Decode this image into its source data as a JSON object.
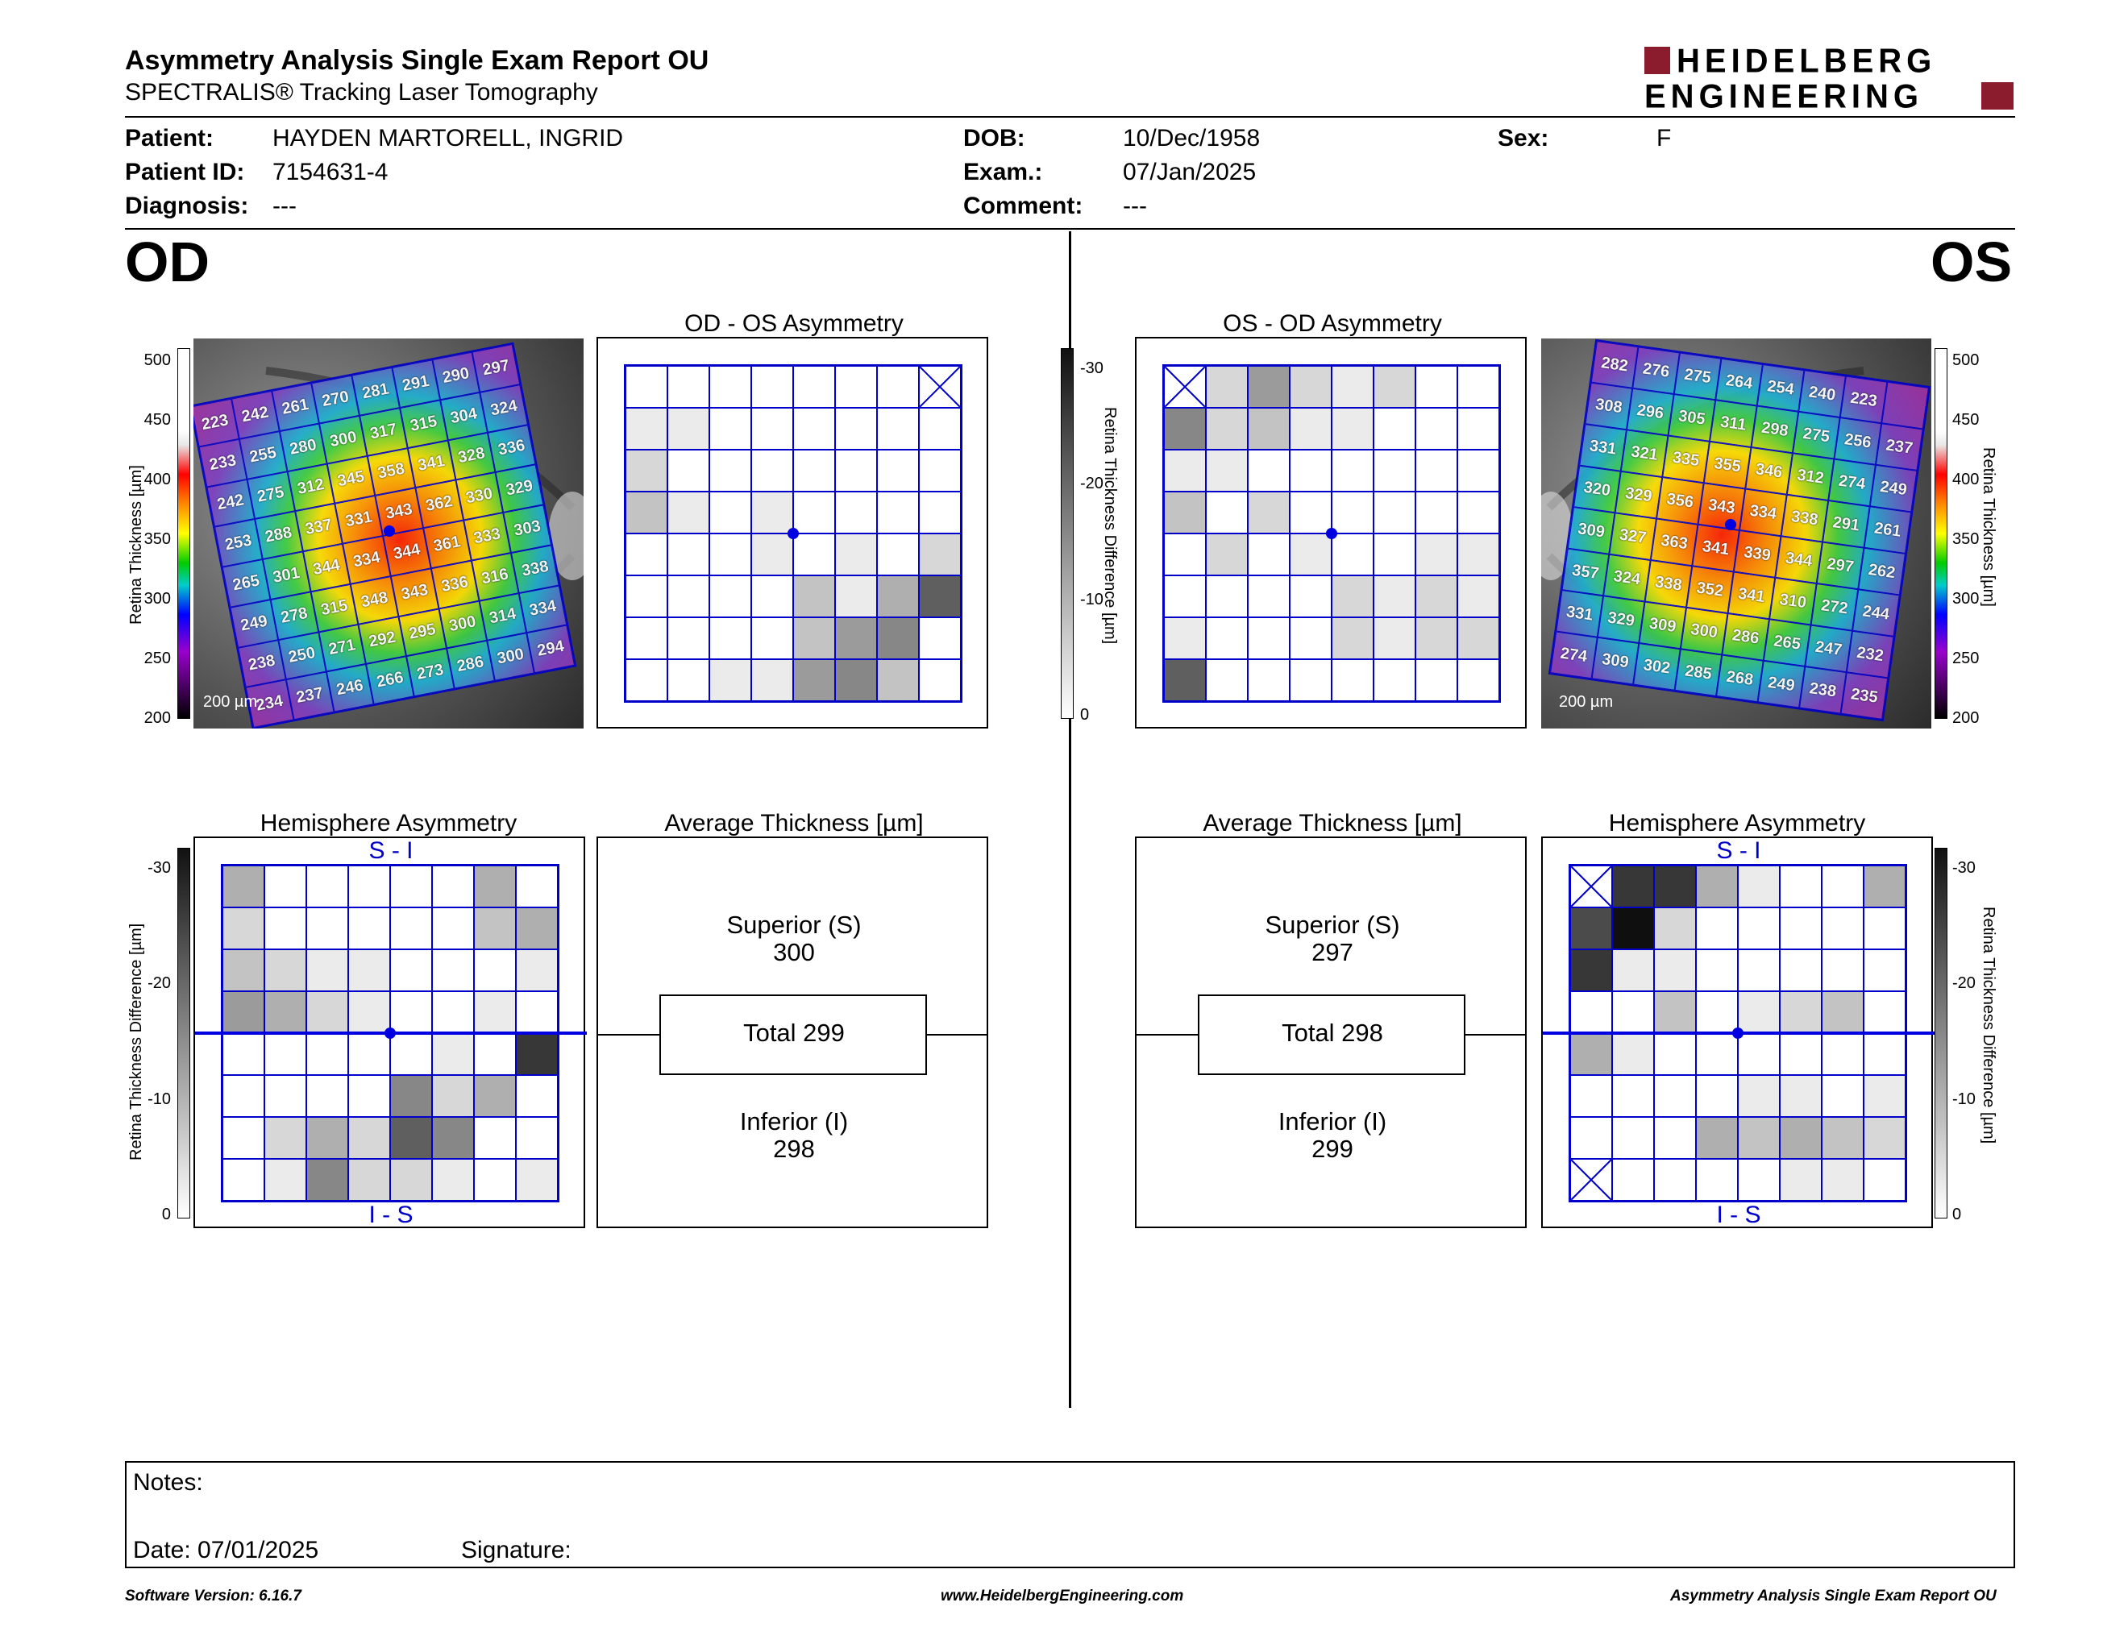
{
  "header": {
    "title": "Asymmetry Analysis Single Exam Report OU",
    "subtitle": "SPECTRALIS® Tracking Laser Tomography",
    "logo_line1": "HEIDELBERG",
    "logo_line2": "ENGINEERING"
  },
  "patient": {
    "patient_label": "Patient:",
    "patient_value": "HAYDEN MARTORELL, INGRID",
    "id_label": "Patient ID:",
    "id_value": "7154631-4",
    "diagnosis_label": "Diagnosis:",
    "diagnosis_value": "---",
    "dob_label": "DOB:",
    "dob_value": "10/Dec/1958",
    "exam_label": "Exam.:",
    "exam_value": "07/Jan/2025",
    "comment_label": "Comment:",
    "comment_value": "---",
    "sex_label": "Sex:",
    "sex_value": "F"
  },
  "od": {
    "eye": "OD",
    "asym_title": "OD - OS Asymmetry",
    "hemi_title": "Hemisphere Asymmetry",
    "hemi_top": "S - I",
    "hemi_bottom": "I - S",
    "avg_title": "Average Thickness [µm]",
    "superior_label": "Superior (S)",
    "superior_value": "300",
    "total": "Total 299",
    "inferior_label": "Inferior (I)",
    "inferior_value": "298",
    "scale": "200 µm",
    "thickness": [
      [
        "223",
        "242",
        "261",
        "270",
        "281",
        "291",
        "290",
        "297"
      ],
      [
        "233",
        "255",
        "280",
        "300",
        "317",
        "315",
        "304",
        "324"
      ],
      [
        "242",
        "275",
        "312",
        "345",
        "358",
        "341",
        "328",
        "336"
      ],
      [
        "253",
        "288",
        "337",
        "331",
        "343",
        "362",
        "330",
        "329"
      ],
      [
        "265",
        "301",
        "344",
        "334",
        "344",
        "361",
        "333",
        "303"
      ],
      [
        "249",
        "278",
        "315",
        "348",
        "343",
        "336",
        "316",
        "338"
      ],
      [
        "238",
        "250",
        "271",
        "292",
        "295",
        "300",
        "314",
        "334"
      ],
      [
        "234",
        "237",
        "246",
        "266",
        "273",
        "286",
        "300",
        "294"
      ]
    ],
    "asym_gray": [
      [
        0,
        0,
        0,
        0,
        0,
        0,
        0,
        -1
      ],
      [
        1,
        1,
        0,
        0,
        0,
        0,
        0,
        0
      ],
      [
        2,
        0,
        0,
        0,
        0,
        0,
        0,
        0
      ],
      [
        3,
        1,
        0,
        1,
        0,
        0,
        0,
        0
      ],
      [
        0,
        0,
        0,
        1,
        0,
        1,
        0,
        2
      ],
      [
        0,
        0,
        0,
        0,
        3,
        1,
        4,
        8
      ],
      [
        0,
        0,
        0,
        0,
        3,
        5,
        6,
        0
      ],
      [
        0,
        0,
        1,
        1,
        5,
        6,
        3,
        0
      ]
    ],
    "hemi_gray": [
      [
        4,
        0,
        0,
        0,
        0,
        0,
        4,
        0
      ],
      [
        2,
        0,
        0,
        0,
        0,
        0,
        3,
        4
      ],
      [
        3,
        2,
        1,
        1,
        0,
        0,
        0,
        1
      ],
      [
        5,
        4,
        2,
        1,
        0,
        0,
        1,
        0
      ],
      [
        0,
        0,
        0,
        0,
        0,
        1,
        0,
        10
      ],
      [
        0,
        0,
        0,
        0,
        6,
        2,
        4,
        0
      ],
      [
        0,
        2,
        4,
        2,
        8,
        6,
        0,
        0
      ],
      [
        0,
        1,
        6,
        2,
        2,
        1,
        0,
        1
      ]
    ]
  },
  "os": {
    "eye": "OS",
    "asym_title": "OS - OD Asymmetry",
    "hemi_title": "Hemisphere Asymmetry",
    "hemi_top": "S - I",
    "hemi_bottom": "I - S",
    "avg_title": "Average Thickness [µm]",
    "superior_label": "Superior (S)",
    "superior_value": "297",
    "total": "Total 298",
    "inferior_label": "Inferior (I)",
    "inferior_value": "299",
    "scale": "200 µm",
    "thickness": [
      [
        "282",
        "276",
        "275",
        "264",
        "254",
        "240",
        "223",
        ""
      ],
      [
        "308",
        "296",
        "305",
        "311",
        "298",
        "275",
        "256",
        "237"
      ],
      [
        "331",
        "321",
        "335",
        "355",
        "346",
        "312",
        "274",
        "249"
      ],
      [
        "320",
        "329",
        "356",
        "343",
        "334",
        "338",
        "291",
        "261"
      ],
      [
        "309",
        "327",
        "363",
        "341",
        "339",
        "344",
        "297",
        "262"
      ],
      [
        "357",
        "324",
        "338",
        "352",
        "341",
        "310",
        "272",
        "244"
      ],
      [
        "331",
        "329",
        "309",
        "300",
        "286",
        "265",
        "247",
        "232"
      ],
      [
        "274",
        "309",
        "302",
        "285",
        "268",
        "249",
        "238",
        "235"
      ]
    ],
    "asym_gray": [
      [
        -1,
        2,
        5,
        2,
        1,
        2,
        0,
        0
      ],
      [
        6,
        2,
        3,
        1,
        1,
        0,
        0,
        0
      ],
      [
        1,
        1,
        0,
        0,
        0,
        0,
        0,
        0
      ],
      [
        3,
        0,
        2,
        0,
        0,
        0,
        0,
        0
      ],
      [
        0,
        2,
        0,
        1,
        0,
        0,
        1,
        1
      ],
      [
        0,
        0,
        0,
        0,
        2,
        1,
        2,
        1
      ],
      [
        1,
        0,
        0,
        0,
        2,
        1,
        2,
        2
      ],
      [
        8,
        0,
        0,
        0,
        0,
        0,
        0,
        0
      ]
    ],
    "hemi_gray": [
      [
        -1,
        10,
        10,
        4,
        1,
        0,
        0,
        4
      ],
      [
        9,
        12,
        2,
        0,
        0,
        0,
        0,
        0
      ],
      [
        10,
        1,
        1,
        0,
        0,
        0,
        0,
        0
      ],
      [
        0,
        0,
        3,
        0,
        1,
        2,
        3,
        0
      ],
      [
        4,
        1,
        0,
        0,
        0,
        0,
        0,
        0
      ],
      [
        0,
        0,
        0,
        0,
        1,
        1,
        0,
        1
      ],
      [
        0,
        0,
        0,
        4,
        3,
        4,
        3,
        2
      ],
      [
        -1,
        0,
        0,
        0,
        0,
        1,
        1,
        0
      ]
    ]
  },
  "scales": {
    "thickness_label": "Retina Thickness [µm]",
    "thickness_ticks": [
      "500",
      "450",
      "400",
      "350",
      "300",
      "250",
      "200"
    ],
    "diff_label": "Retina Thickness Difference [µm]",
    "diff_ticks": [
      "-30",
      "-20",
      "-10",
      "0"
    ]
  },
  "notes": {
    "notes_label": "Notes:",
    "date_label": "Date: 07/01/2025",
    "signature_label": "Signature:"
  },
  "footer": {
    "version": "Software Version: 6.16.7",
    "url": "www.HeidelbergEngineering.com",
    "report": "Asymmetry Analysis Single Exam Report OU"
  },
  "colors": {
    "grid_blue": "#0000c8",
    "brand_red": "#8a1c2e"
  }
}
